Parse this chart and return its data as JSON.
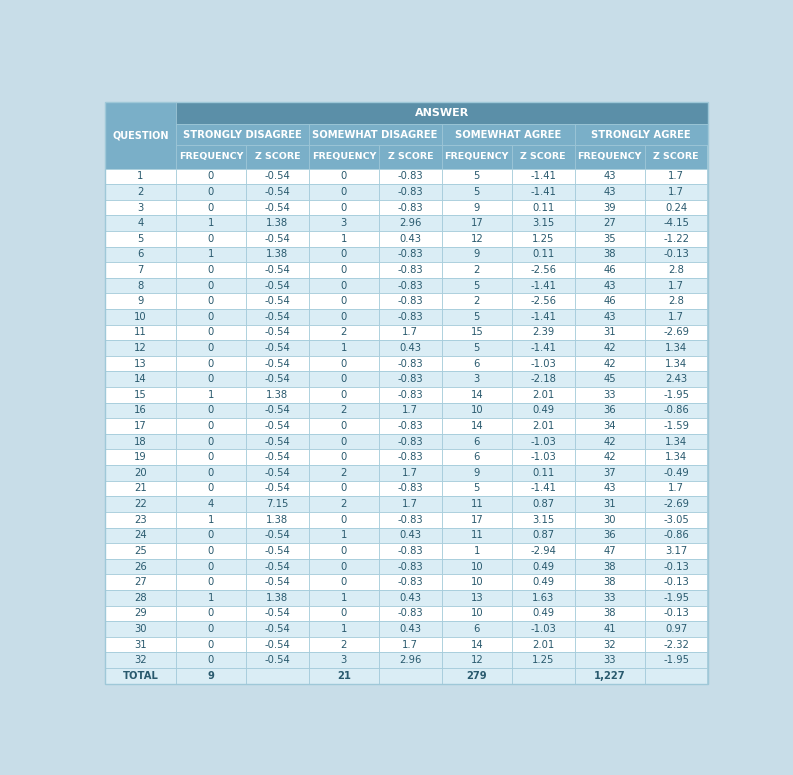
{
  "title": "ANSWER",
  "col_groups": [
    "STRONGLY DISAGREE",
    "SOMEWHAT DISAGREE",
    "SOMEWHAT AGREE",
    "STRONGLY AGREE"
  ],
  "sub_cols": [
    "FREQUENCY",
    "Z SCORE"
  ],
  "row_header": "QUESTION",
  "rows": [
    [
      1,
      0,
      -0.54,
      0,
      -0.83,
      5,
      -1.41,
      43,
      1.7
    ],
    [
      2,
      0,
      -0.54,
      0,
      -0.83,
      5,
      -1.41,
      43,
      1.7
    ],
    [
      3,
      0,
      -0.54,
      0,
      -0.83,
      9,
      0.11,
      39,
      0.24
    ],
    [
      4,
      1,
      1.38,
      3,
      2.96,
      17,
      3.15,
      27,
      -4.15
    ],
    [
      5,
      0,
      -0.54,
      1,
      0.43,
      12,
      1.25,
      35,
      -1.22
    ],
    [
      6,
      1,
      1.38,
      0,
      -0.83,
      9,
      0.11,
      38,
      -0.13
    ],
    [
      7,
      0,
      -0.54,
      0,
      -0.83,
      2,
      -2.56,
      46,
      2.8
    ],
    [
      8,
      0,
      -0.54,
      0,
      -0.83,
      5,
      -1.41,
      43,
      1.7
    ],
    [
      9,
      0,
      -0.54,
      0,
      -0.83,
      2,
      -2.56,
      46,
      2.8
    ],
    [
      10,
      0,
      -0.54,
      0,
      -0.83,
      5,
      -1.41,
      43,
      1.7
    ],
    [
      11,
      0,
      -0.54,
      2,
      1.7,
      15,
      2.39,
      31,
      -2.69
    ],
    [
      12,
      0,
      -0.54,
      1,
      0.43,
      5,
      -1.41,
      42,
      1.34
    ],
    [
      13,
      0,
      -0.54,
      0,
      -0.83,
      6,
      -1.03,
      42,
      1.34
    ],
    [
      14,
      0,
      -0.54,
      0,
      -0.83,
      3,
      -2.18,
      45,
      2.43
    ],
    [
      15,
      1,
      1.38,
      0,
      -0.83,
      14,
      2.01,
      33,
      -1.95
    ],
    [
      16,
      0,
      -0.54,
      2,
      1.7,
      10,
      0.49,
      36,
      -0.86
    ],
    [
      17,
      0,
      -0.54,
      0,
      -0.83,
      14,
      2.01,
      34,
      -1.59
    ],
    [
      18,
      0,
      -0.54,
      0,
      -0.83,
      6,
      -1.03,
      42,
      1.34
    ],
    [
      19,
      0,
      -0.54,
      0,
      -0.83,
      6,
      -1.03,
      42,
      1.34
    ],
    [
      20,
      0,
      -0.54,
      2,
      1.7,
      9,
      0.11,
      37,
      -0.49
    ],
    [
      21,
      0,
      -0.54,
      0,
      -0.83,
      5,
      -1.41,
      43,
      1.7
    ],
    [
      22,
      4,
      7.15,
      2,
      1.7,
      11,
      0.87,
      31,
      -2.69
    ],
    [
      23,
      1,
      1.38,
      0,
      -0.83,
      17,
      3.15,
      30,
      -3.05
    ],
    [
      24,
      0,
      -0.54,
      1,
      0.43,
      11,
      0.87,
      36,
      -0.86
    ],
    [
      25,
      0,
      -0.54,
      0,
      -0.83,
      1,
      -2.94,
      47,
      3.17
    ],
    [
      26,
      0,
      -0.54,
      0,
      -0.83,
      10,
      0.49,
      38,
      -0.13
    ],
    [
      27,
      0,
      -0.54,
      0,
      -0.83,
      10,
      0.49,
      38,
      -0.13
    ],
    [
      28,
      1,
      1.38,
      1,
      0.43,
      13,
      1.63,
      33,
      -1.95
    ],
    [
      29,
      0,
      -0.54,
      0,
      -0.83,
      10,
      0.49,
      38,
      -0.13
    ],
    [
      30,
      0,
      -0.54,
      1,
      0.43,
      6,
      -1.03,
      41,
      0.97
    ],
    [
      31,
      0,
      -0.54,
      2,
      1.7,
      14,
      2.01,
      32,
      -2.32
    ],
    [
      32,
      0,
      -0.54,
      3,
      2.96,
      12,
      1.25,
      33,
      -1.95
    ]
  ],
  "total_row": [
    "TOTAL",
    "9",
    "",
    "21",
    "",
    "279",
    "",
    "1,227",
    ""
  ],
  "bg_outer": "#c8dde8",
  "header_answer_bg": "#5b8fa8",
  "header_group_bg": "#7aafc8",
  "header_sub_bg": "#7aafc8",
  "question_col_bg": "#7aafc8",
  "row_light_bg": "#ffffff",
  "row_dark_bg": "#daedf5",
  "total_bg": "#daedf5",
  "border_color": "#9fc8d8",
  "header_text_color": "#ffffff",
  "data_text_color": "#2a5a6e",
  "total_text_color": "#2a5a6e",
  "font_size_answer": 8.0,
  "font_size_group": 7.2,
  "font_size_sub": 6.8,
  "font_size_question": 7.0,
  "font_size_data": 7.2
}
